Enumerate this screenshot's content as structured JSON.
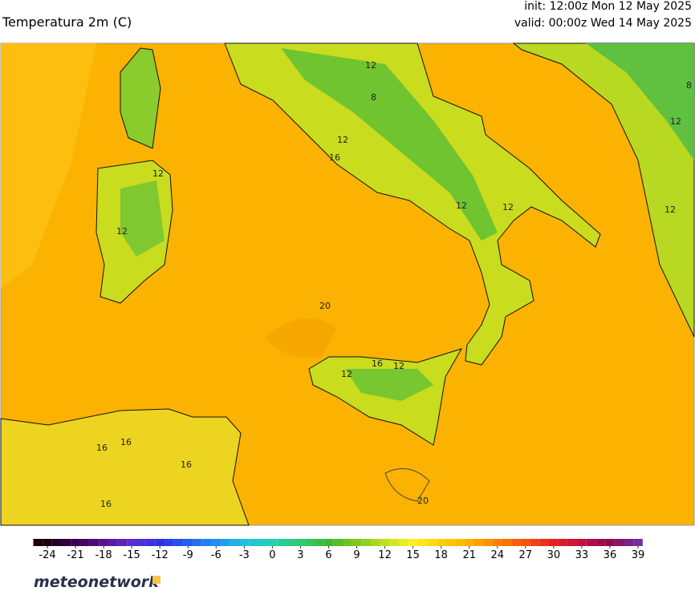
{
  "header": {
    "title": "Temperatura 2m (C)",
    "init": "init: 12:00z Mon 12 May 2025",
    "valid": "valid: 00:00z Wed 14 May 2025"
  },
  "map": {
    "contour_labels": [
      "12",
      "8",
      "12",
      "12",
      "12",
      "16",
      "12",
      "12",
      "20",
      "12",
      "16",
      "12",
      "16",
      "16",
      "16",
      "16",
      "20",
      "12",
      "12",
      "8"
    ]
  },
  "colorbar": {
    "ticks": [
      -24,
      -21,
      -18,
      -15,
      -12,
      -9,
      -6,
      -3,
      0,
      3,
      6,
      9,
      12,
      15,
      18,
      21,
      24,
      27,
      30,
      33,
      36,
      39
    ],
    "colors": [
      "#1a0010",
      "#3a0050",
      "#5a1090",
      "#5a2ed0",
      "#3030e8",
      "#2060f0",
      "#2090f0",
      "#20c0e0",
      "#20d0b0",
      "#30c870",
      "#40b830",
      "#80c820",
      "#c0e020",
      "#fff020",
      "#ffd000",
      "#ffb000",
      "#ff8000",
      "#f85010",
      "#e82020",
      "#c01040",
      "#900850",
      "#7030a0"
    ]
  },
  "brand": "meteonetwork"
}
